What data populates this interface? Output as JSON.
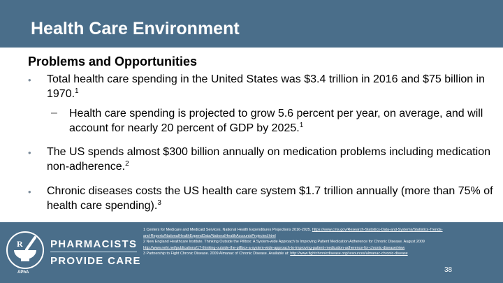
{
  "slide": {
    "title": "Health Care Environment",
    "subtitle": "Problems and Opportunities",
    "bullet_glyph": "•",
    "sub_bullet_glyph": "–",
    "bullets": [
      {
        "text": "Total health care spending in the United States was $3.4 trillion in 2016 and $75 billion in 1970.",
        "ref": "1"
      },
      {
        "text": "The US spends almost $300 billion annually on medication problems including medication non-adherence.",
        "ref": "2"
      },
      {
        "text": "Chronic diseases costs the US health care system $1.7 trillion annually (more than 75% of health care spending).",
        "ref": "3"
      }
    ],
    "sub_bullet": {
      "text": "Health care spending is projected to grow 5.6 percent per year, on average, and will account for nearly 20 percent of GDP by 2025.",
      "ref": "1"
    }
  },
  "footer": {
    "references": [
      {
        "text": "1 Centers for Medicare and Medicaid Services. National Health Expenditures Projections 2016-2025.",
        "link": "https://www.cms.gov/Research-Statistics-Data-and-Systems/Statistics-Trends-"
      },
      {
        "text": "",
        "link": "and-Reports/NationalHealthExpendData/NationalHealthAccountsProjected.html"
      },
      {
        "text": "2 New England Healthcare Institute. Thinking Outside the Pillbox: A System-wide Approach to Improving Patient Medication Adherence for Chronic Disease. August 2009",
        "link": ""
      },
      {
        "text": "",
        "link": "http://www.nehi.net/publications/17-thinking-outside-the-pillbox-a-system-wide-approach-to-improving-patient-medication-adherence-for-chronic-disease/view"
      },
      {
        "text": "3 Partnership to Fight Chronic Disease. 2009 Almanac of Chronic Disease. Available at:",
        "link": "http://www.fightchronicdisease.org/resources/almanac-chronic-disease"
      }
    ],
    "page_number": "38",
    "logo": {
      "line1": "PHARMACISTS",
      "line2": "PROVIDE CARE",
      "abbr": "APhA",
      "icon": "mortar-pestle-rx-icon"
    }
  },
  "colors": {
    "header": "#4a6e8a",
    "footer": "#4a6e8a",
    "text": "#000000",
    "white": "#ffffff"
  }
}
